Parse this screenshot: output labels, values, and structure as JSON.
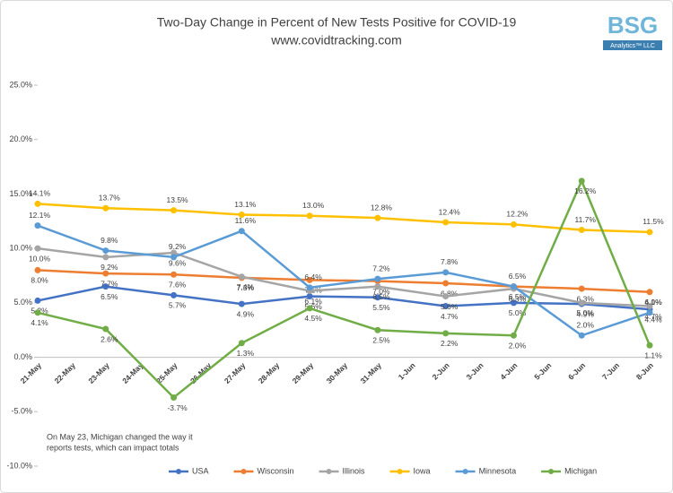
{
  "chart_data": {
    "type": "line",
    "title": "Two-Day Change in Percent of New Tests Positive for COVID-19",
    "subtitle": "www.covidtracking.com",
    "logo": {
      "mark": "BSG",
      "text": "Analytics™ LLC"
    },
    "annotation": [
      "On May 23, Michigan changed the way it",
      "reports tests, which can impact totals"
    ],
    "xticks": [
      "21-May",
      "22-May",
      "23-May",
      "24-May",
      "25-May",
      "26-May",
      "27-May",
      "28-May",
      "29-May",
      "30-May",
      "31-May",
      "1-Jun",
      "2-Jun",
      "3-Jun",
      "4-Jun",
      "5-Jun",
      "6-Jun",
      "7-Jun",
      "8-Jun"
    ],
    "categories": [
      "21-May",
      "23-May",
      "25-May",
      "27-May",
      "29-May",
      "31-May",
      "2-Jun",
      "4-Jun",
      "6-Jun",
      "8-Jun"
    ],
    "ylim": [
      -10,
      25
    ],
    "yticks": [
      {
        "value": -10,
        "label": "-10.0%"
      },
      {
        "value": -5,
        "label": "-5.0%"
      },
      {
        "value": 0,
        "label": "0.0%"
      },
      {
        "value": 5,
        "label": "5.0%"
      },
      {
        "value": 10,
        "label": "10.0%"
      },
      {
        "value": 15,
        "label": "15.0%"
      },
      {
        "value": 20,
        "label": "20.0%"
      },
      {
        "value": 25,
        "label": "25.0%"
      }
    ],
    "grid": false,
    "legend": "bottom",
    "series": [
      {
        "name": "USA",
        "color": "#4472c4",
        "values": [
          5.2,
          6.5,
          5.7,
          4.9,
          5.6,
          5.5,
          4.7,
          5.0,
          4.9,
          4.4
        ],
        "value_labels": [
          "5.2%",
          "6.5%",
          "5.7%",
          "4.9%",
          "5.6%",
          "5.5%",
          "4.7%",
          "5.0%",
          "4.9%",
          "4.4%"
        ]
      },
      {
        "name": "Wisconsin",
        "color": "#ed7d31",
        "values": [
          8.0,
          7.7,
          7.6,
          7.3,
          7.1,
          7.0,
          6.8,
          6.5,
          6.3,
          6.0
        ],
        "value_labels": [
          "8.0%",
          "7.7%",
          "7.6%",
          "7.3%",
          "7.1%",
          "7.0%",
          "6.8%",
          "6.5%",
          "6.3%",
          "6.0%"
        ]
      },
      {
        "name": "Illinois",
        "color": "#a5a5a5",
        "values": [
          10.0,
          9.2,
          9.6,
          7.4,
          6.1,
          6.5,
          5.6,
          6.3,
          5.0,
          4.7
        ],
        "value_labels": [
          "10.0%",
          "9.2%",
          "9.6%",
          "7.4%",
          "6.1%",
          "6.5%",
          "5.6%",
          "6.3%",
          "5.0%",
          "4.7%"
        ]
      },
      {
        "name": "Iowa",
        "color": "#ffc000",
        "values": [
          14.1,
          13.7,
          13.5,
          13.1,
          13.0,
          12.8,
          12.4,
          12.2,
          11.7,
          11.5
        ],
        "value_labels": [
          "14.1%",
          "13.7%",
          "13.5%",
          "13.1%",
          "13.0%",
          "12.8%",
          "12.4%",
          "12.2%",
          "11.7%",
          "11.5%"
        ]
      },
      {
        "name": "Minnesota",
        "color": "#5b9bd5",
        "values": [
          12.1,
          9.8,
          9.2,
          11.6,
          6.4,
          7.2,
          7.8,
          6.5,
          2.0,
          4.1
        ],
        "value_labels": [
          "12.1%",
          "9.8%",
          "9.2%",
          "11.6%",
          "6.4%",
          "7.2%",
          "7.8%",
          "6.5%",
          "2.0%",
          "4.1%"
        ]
      },
      {
        "name": "Michigan",
        "color": "#70ad47",
        "values": [
          4.1,
          2.6,
          -3.7,
          1.3,
          4.5,
          2.5,
          2.2,
          2.0,
          16.2,
          1.1
        ],
        "value_labels": [
          "4.1%",
          "2.6%",
          "-3.7%",
          "1.3%",
          "4.5%",
          "2.5%",
          "2.2%",
          "2.0%",
          "16.2%",
          "1.1%"
        ]
      }
    ]
  }
}
